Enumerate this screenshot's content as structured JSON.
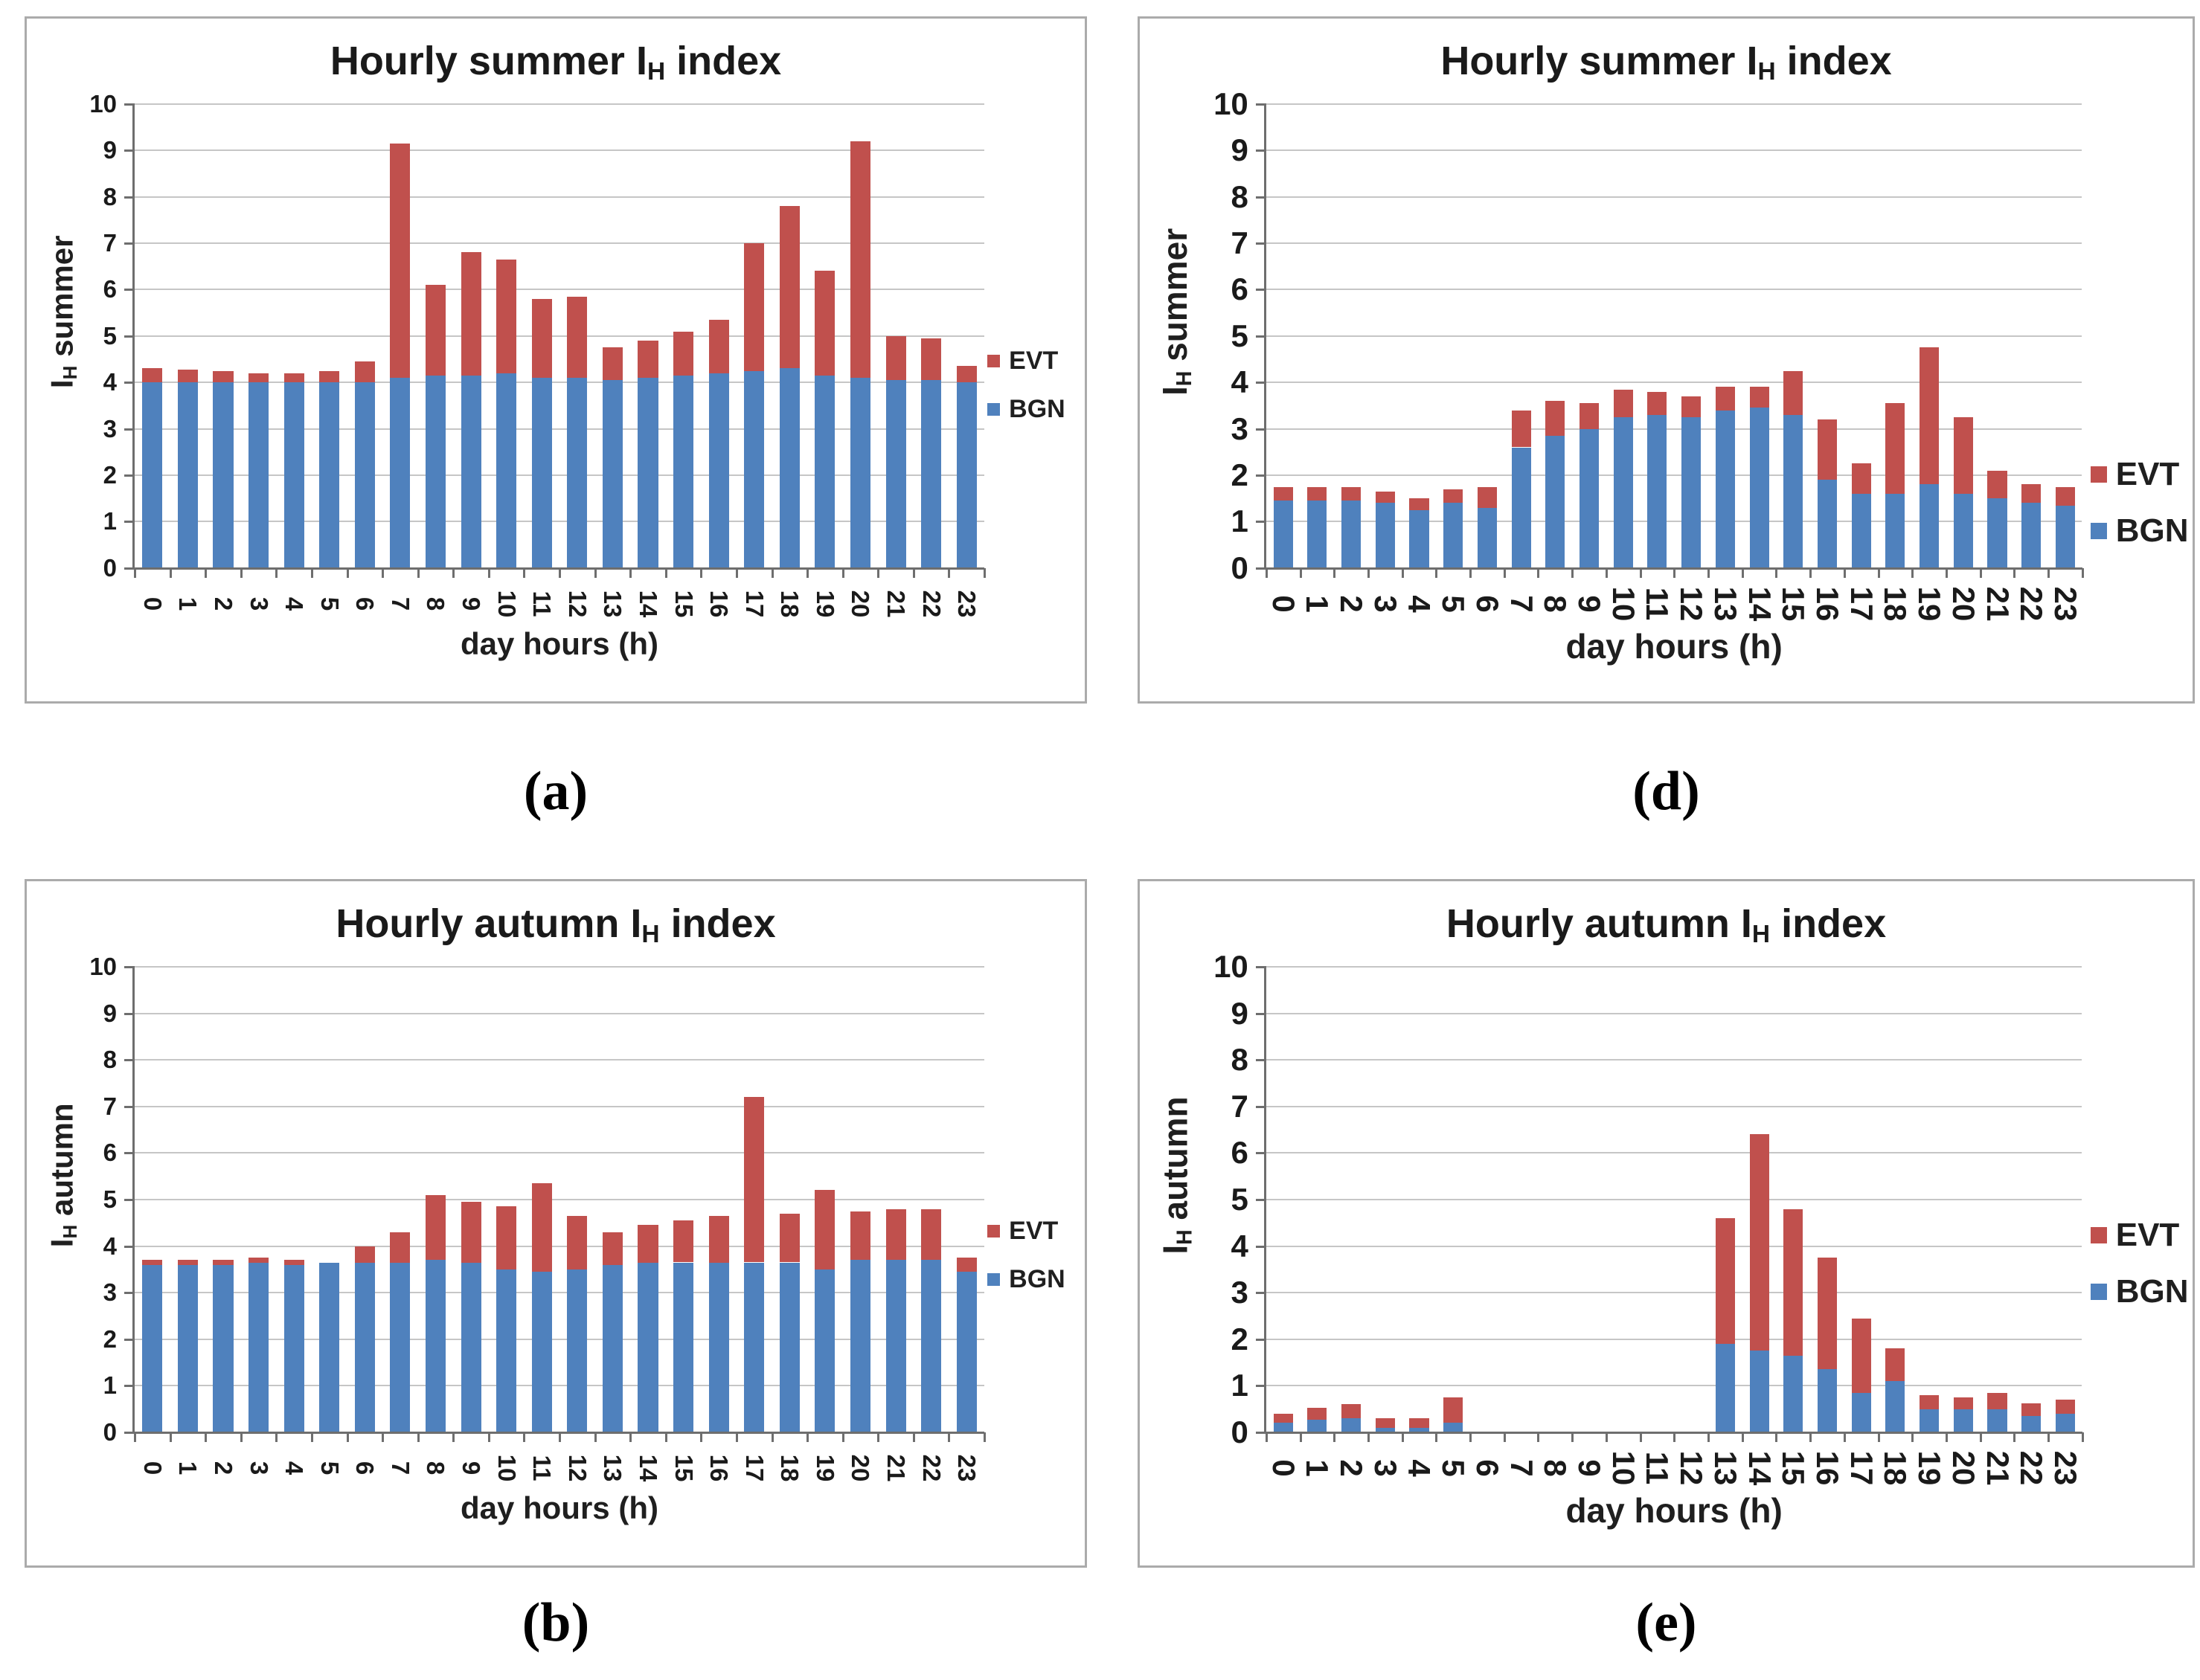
{
  "colors": {
    "evt": "#C0504D",
    "bgn": "#4F81BD",
    "grid": "#c6c6c6",
    "axis": "#6e6e6e",
    "panel_border": "#ababab",
    "text": "#1a1a1a"
  },
  "legend": {
    "evt_label": "EVT",
    "bgn_label": "BGN"
  },
  "chart_data": [
    {
      "id": "a",
      "type": "bar",
      "stacked": true,
      "title": "Hourly summer IH index",
      "title_parts": {
        "pre": "Hourly summer I",
        "sub": "H",
        "post": " index"
      },
      "xlabel": "day hours (h)",
      "ylabel": "IH summer",
      "ylabel_parts": {
        "pre": "I",
        "sub": "H",
        "post": " summer"
      },
      "caption": "(a)",
      "ylim": [
        0,
        10
      ],
      "grid": true,
      "legend_position": "right",
      "categories": [
        "0",
        "1",
        "2",
        "3",
        "4",
        "5",
        "6",
        "7",
        "8",
        "9",
        "10",
        "11",
        "12",
        "13",
        "14",
        "15",
        "16",
        "17",
        "18",
        "19",
        "20",
        "21",
        "22",
        "23"
      ],
      "series": [
        {
          "name": "BGN",
          "color": "#4F81BD",
          "values": [
            4.0,
            4.0,
            4.0,
            4.0,
            4.0,
            4.0,
            4.0,
            4.1,
            4.15,
            4.15,
            4.2,
            4.1,
            4.1,
            4.05,
            4.1,
            4.15,
            4.2,
            4.25,
            4.3,
            4.15,
            4.1,
            4.05,
            4.05,
            4.0
          ]
        },
        {
          "name": "EVT",
          "color": "#C0504D",
          "values": [
            0.3,
            0.28,
            0.25,
            0.2,
            0.2,
            0.25,
            0.45,
            5.05,
            1.95,
            2.65,
            2.45,
            1.7,
            1.75,
            0.7,
            0.8,
            0.95,
            1.15,
            2.75,
            3.5,
            2.25,
            5.1,
            0.95,
            0.9,
            0.35
          ]
        }
      ]
    },
    {
      "id": "d",
      "type": "bar",
      "stacked": true,
      "title": "Hourly summer IH index",
      "title_parts": {
        "pre": "Hourly summer I",
        "sub": "H",
        "post": " index"
      },
      "xlabel": "day hours (h)",
      "ylabel": "IH summer",
      "ylabel_parts": {
        "pre": "I",
        "sub": "H",
        "post": " summer"
      },
      "caption": "(d)",
      "ylim": [
        0,
        10
      ],
      "grid": true,
      "legend_position": "right",
      "categories": [
        "0",
        "1",
        "2",
        "3",
        "4",
        "5",
        "6",
        "7",
        "8",
        "9",
        "10",
        "11",
        "12",
        "13",
        "14",
        "15",
        "16",
        "17",
        "18",
        "19",
        "20",
        "21",
        "22",
        "23"
      ],
      "series": [
        {
          "name": "BGN",
          "color": "#4F81BD",
          "values": [
            1.45,
            1.45,
            1.45,
            1.4,
            1.25,
            1.4,
            1.3,
            2.6,
            2.85,
            3.0,
            3.25,
            3.3,
            3.25,
            3.4,
            3.45,
            3.3,
            1.9,
            1.6,
            1.6,
            1.8,
            1.6,
            1.5,
            1.4,
            1.35
          ]
        },
        {
          "name": "EVT",
          "color": "#C0504D",
          "values": [
            0.3,
            0.3,
            0.3,
            0.25,
            0.25,
            0.3,
            0.45,
            0.8,
            0.75,
            0.55,
            0.6,
            0.5,
            0.45,
            0.5,
            0.45,
            0.95,
            1.3,
            0.65,
            1.95,
            2.95,
            1.65,
            0.6,
            0.4,
            0.4
          ]
        }
      ]
    },
    {
      "id": "b",
      "type": "bar",
      "stacked": true,
      "title": "Hourly autumn IH index",
      "title_parts": {
        "pre": "Hourly autumn I",
        "sub": "H",
        "post": " index"
      },
      "xlabel": "day hours (h)",
      "ylabel": "IH autumn",
      "ylabel_parts": {
        "pre": "I",
        "sub": "H",
        "post": " autumn"
      },
      "caption": "(b)",
      "ylim": [
        0,
        10
      ],
      "grid": true,
      "legend_position": "right",
      "categories": [
        "0",
        "1",
        "2",
        "3",
        "4",
        "5",
        "6",
        "7",
        "8",
        "9",
        "10",
        "11",
        "12",
        "13",
        "14",
        "15",
        "16",
        "17",
        "18",
        "19",
        "20",
        "21",
        "22",
        "23"
      ],
      "series": [
        {
          "name": "BGN",
          "color": "#4F81BD",
          "values": [
            3.6,
            3.6,
            3.6,
            3.65,
            3.6,
            3.65,
            3.65,
            3.65,
            3.7,
            3.65,
            3.5,
            3.45,
            3.5,
            3.6,
            3.65,
            3.65,
            3.65,
            3.65,
            3.65,
            3.5,
            3.7,
            3.7,
            3.7,
            3.45
          ]
        },
        {
          "name": "EVT",
          "color": "#C0504D",
          "values": [
            0.1,
            0.1,
            0.1,
            0.1,
            0.1,
            0.0,
            0.35,
            0.65,
            1.4,
            1.3,
            1.35,
            1.9,
            1.15,
            0.7,
            0.8,
            0.9,
            1.0,
            3.55,
            1.05,
            1.7,
            1.05,
            1.1,
            1.1,
            0.3
          ]
        }
      ]
    },
    {
      "id": "e",
      "type": "bar",
      "stacked": true,
      "title": "Hourly autumn IH index",
      "title_parts": {
        "pre": "Hourly autumn I",
        "sub": "H",
        "post": " index"
      },
      "xlabel": "day hours (h)",
      "ylabel": "IH autumn",
      "ylabel_parts": {
        "pre": "I",
        "sub": "H",
        "post": " autumn"
      },
      "caption": "(e)",
      "ylim": [
        0,
        10
      ],
      "grid": true,
      "legend_position": "right",
      "categories": [
        "0",
        "1",
        "2",
        "3",
        "4",
        "5",
        "6",
        "7",
        "8",
        "9",
        "10",
        "11",
        "12",
        "13",
        "14",
        "15",
        "16",
        "17",
        "18",
        "19",
        "20",
        "21",
        "22",
        "23"
      ],
      "series": [
        {
          "name": "BGN",
          "color": "#4F81BD",
          "values": [
            0.2,
            0.27,
            0.3,
            0.1,
            0.1,
            0.2,
            0,
            0,
            0,
            0,
            0,
            0,
            0,
            1.9,
            1.75,
            1.65,
            1.35,
            0.85,
            1.1,
            0.5,
            0.5,
            0.5,
            0.35,
            0.4
          ]
        },
        {
          "name": "EVT",
          "color": "#C0504D",
          "values": [
            0.2,
            0.25,
            0.3,
            0.2,
            0.2,
            0.55,
            0,
            0,
            0,
            0,
            0,
            0,
            0,
            2.7,
            4.65,
            3.15,
            2.4,
            1.6,
            0.7,
            0.3,
            0.25,
            0.35,
            0.27,
            0.3
          ]
        }
      ]
    }
  ]
}
